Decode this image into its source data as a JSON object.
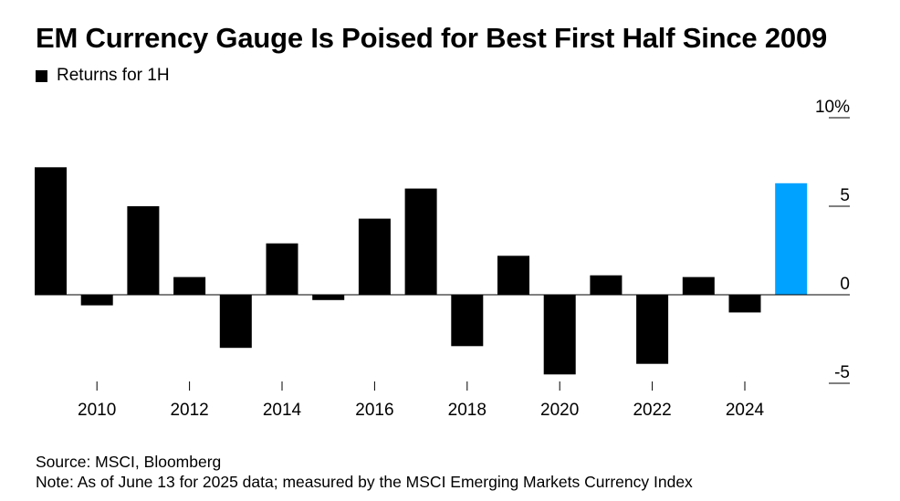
{
  "title": "EM Currency Gauge Is Poised for Best First Half Since 2009",
  "legend": {
    "label": "Returns for 1H"
  },
  "chart_data": {
    "type": "bar",
    "title": "EM Currency Gauge Is Poised for Best First Half Since 2009",
    "xlabel": "",
    "ylabel": "",
    "categories": [
      2009,
      2010,
      2011,
      2012,
      2013,
      2014,
      2015,
      2016,
      2017,
      2018,
      2019,
      2020,
      2021,
      2022,
      2023,
      2024,
      2025
    ],
    "series": [
      {
        "name": "Returns for 1H",
        "values": [
          7.2,
          -0.6,
          5.0,
          1.0,
          -3.0,
          2.9,
          -0.3,
          4.3,
          6.0,
          -2.9,
          2.2,
          -4.5,
          1.1,
          -3.9,
          1.0,
          -1.0,
          6.3
        ],
        "highlight_index": 16,
        "color": "#000000",
        "highlight_color": "#00a2ff"
      }
    ],
    "ylim": [
      -5.7,
      11
    ],
    "yticks": [
      10,
      5,
      0,
      -5
    ],
    "ytick_labels": [
      "10%",
      "5",
      "0",
      "-5"
    ],
    "xticks": [
      2010,
      2012,
      2014,
      2016,
      2018,
      2020,
      2022,
      2024
    ],
    "xtick_labels": [
      "2010",
      "2012",
      "2014",
      "2016",
      "2018",
      "2020",
      "2022",
      "2024"
    ],
    "legend_position": "top-left"
  },
  "footer": {
    "source": "Source: MSCI, Bloomberg",
    "note": "Note: As of June 13 for 2025 data; measured by the MSCI Emerging Markets Currency Index"
  }
}
